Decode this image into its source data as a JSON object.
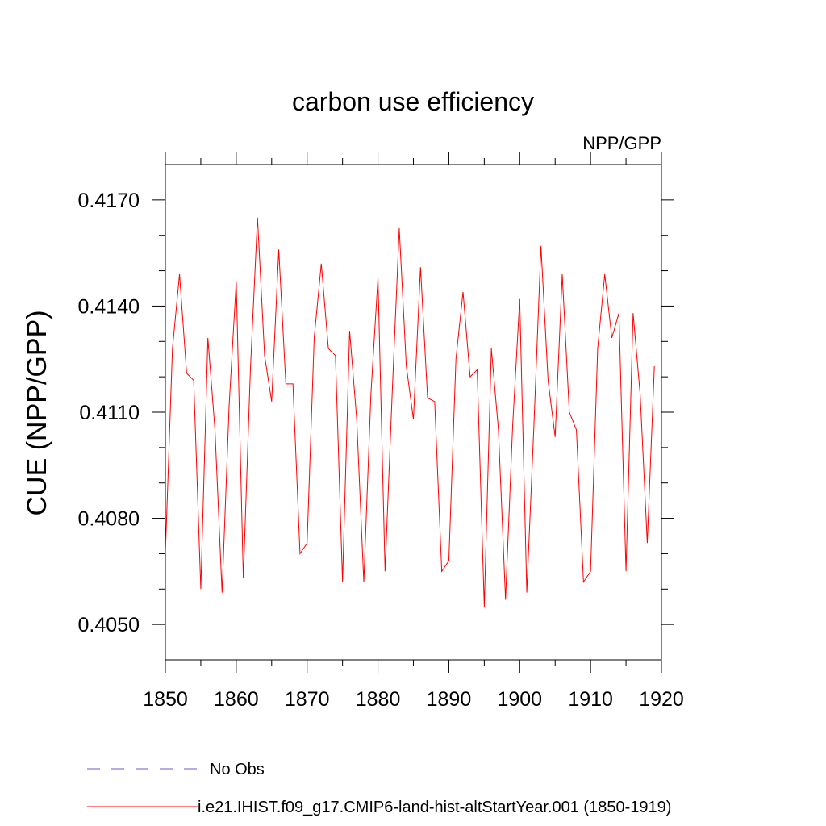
{
  "chart_data": {
    "type": "line",
    "title": "carbon use efficiency",
    "subtitle": "NPP/GPP",
    "xlabel": "",
    "ylabel": "CUE  (NPP/GPP)",
    "xlim": [
      1850,
      1920
    ],
    "ylim": [
      0.404,
      0.418
    ],
    "x_ticks": [
      1850,
      1860,
      1870,
      1880,
      1890,
      1900,
      1910,
      1920
    ],
    "x_tick_labels": [
      "1850",
      "1860",
      "1870",
      "1880",
      "1890",
      "1900",
      "1910",
      "1920"
    ],
    "y_ticks": [
      0.405,
      0.408,
      0.411,
      0.414,
      0.417
    ],
    "y_tick_labels": [
      "0.4050",
      "0.4080",
      "0.4110",
      "0.4140",
      "0.4170"
    ],
    "grid": false,
    "legend_position": "bottom",
    "legend": [
      {
        "label": "No Obs",
        "color": "#6a5acd",
        "style": "dashed"
      },
      {
        "label": "i.e21.IHIST.f09_g17.CMIP6-land-hist-altStartYear.001 (1850-1919)",
        "color": "#ff0000",
        "style": "solid"
      }
    ],
    "series": [
      {
        "name": "i.e21.IHIST.f09_g17.CMIP6-land-hist-altStartYear.001 (1850-1919)",
        "color": "#ff0000",
        "x": [
          1850,
          1851,
          1852,
          1853,
          1854,
          1855,
          1856,
          1857,
          1858,
          1859,
          1860,
          1861,
          1862,
          1863,
          1864,
          1865,
          1866,
          1867,
          1868,
          1869,
          1870,
          1871,
          1872,
          1873,
          1874,
          1875,
          1876,
          1877,
          1878,
          1879,
          1880,
          1881,
          1882,
          1883,
          1884,
          1885,
          1886,
          1887,
          1888,
          1889,
          1890,
          1891,
          1892,
          1893,
          1894,
          1895,
          1896,
          1897,
          1898,
          1899,
          1900,
          1901,
          1902,
          1903,
          1904,
          1905,
          1906,
          1907,
          1908,
          1909,
          1910,
          1911,
          1912,
          1913,
          1914,
          1915,
          1916,
          1917,
          1918,
          1919
        ],
        "values": [
          0.407,
          0.4128,
          0.4149,
          0.4121,
          0.4119,
          0.406,
          0.4131,
          0.4105,
          0.4059,
          0.4112,
          0.4147,
          0.4063,
          0.4122,
          0.4165,
          0.4126,
          0.4113,
          0.4156,
          0.4118,
          0.4118,
          0.407,
          0.4073,
          0.4131,
          0.4152,
          0.4128,
          0.4126,
          0.4062,
          0.4133,
          0.4108,
          0.4062,
          0.4115,
          0.4148,
          0.4065,
          0.4115,
          0.4162,
          0.4123,
          0.4108,
          0.4151,
          0.4114,
          0.4113,
          0.4065,
          0.4068,
          0.4125,
          0.4144,
          0.412,
          0.4122,
          0.4055,
          0.4128,
          0.4105,
          0.4057,
          0.4106,
          0.4142,
          0.4059,
          0.4106,
          0.4157,
          0.4119,
          0.4103,
          0.4149,
          0.411,
          0.4105,
          0.4062,
          0.4065,
          0.4128,
          0.4149,
          0.4131,
          0.4138,
          0.4065,
          0.4138,
          0.4115,
          0.4073,
          0.4123
        ]
      }
    ]
  },
  "colors": {
    "series_line": "#ff0000",
    "no_obs_line": "#6a5acd",
    "axis": "#000000"
  }
}
